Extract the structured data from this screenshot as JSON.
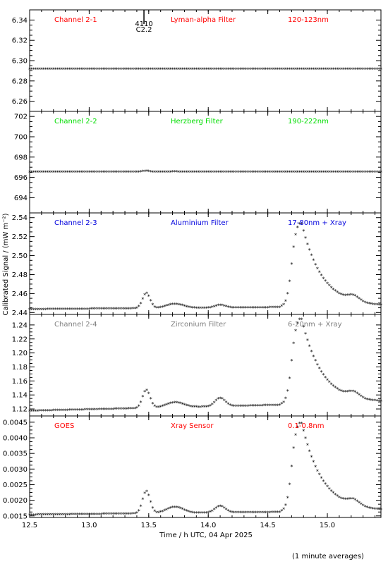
{
  "chart_data": {
    "type": "scatter",
    "xlabel": "Time / h UTC, 04 Apr 2025",
    "ylabel": "Calibrated Signal / (mW m⁻²)",
    "footnote": "(1 minute averages)",
    "xlim": [
      12.5,
      15.45
    ],
    "x_ticks": [
      "12.5",
      "13.0",
      "13.5",
      "14.0",
      "14.5",
      "15.0"
    ],
    "x_tick_values": [
      12.5,
      13.0,
      13.5,
      14.0,
      14.5,
      15.0
    ],
    "annotation": {
      "line1": "4110",
      "line2": "C2.2",
      "x": 13.46
    },
    "panels": [
      {
        "name": "Channel 2-1",
        "filter": "Lyman-alpha Filter",
        "band": "120-123nm",
        "color": "#ff0000",
        "ylim": [
          6.25,
          6.35
        ],
        "yticks": [
          "6.26",
          "6.28",
          "6.30",
          "6.32",
          "6.34"
        ],
        "ytick_values": [
          6.26,
          6.28,
          6.3,
          6.32,
          6.34
        ],
        "profile": {
          "base": 6.291,
          "bump1": 0,
          "bump2": 0,
          "flare": 0,
          "slope": 0
        }
      },
      {
        "name": "Channel 2-2",
        "filter": "Herzberg Filter",
        "band": "190-222nm",
        "color": "#00dd00",
        "ylim": [
          692.5,
          702.5
        ],
        "yticks": [
          "694",
          "696",
          "698",
          "700",
          "702"
        ],
        "ytick_values": [
          694,
          696,
          698,
          700,
          702
        ],
        "profile": {
          "base": 696.45,
          "bump1": 0.1,
          "bump2": 0,
          "flare": 0,
          "slope": 0
        }
      },
      {
        "name": "Channel 2-3",
        "filter": "Aluminium Filter",
        "band": "17-80nm + Xray",
        "color": "#0000dd",
        "ylim": [
          2.438,
          2.545
        ],
        "yticks": [
          "2.44",
          "2.46",
          "2.48",
          "2.50",
          "2.52",
          "2.54"
        ],
        "ytick_values": [
          2.44,
          2.46,
          2.48,
          2.5,
          2.52,
          2.54
        ],
        "profile": {
          "base": 2.4425,
          "bump1": 0.016,
          "bump2": 0.003,
          "flare": 0.091,
          "slope": 0.001
        }
      },
      {
        "name": "Channel 2-4",
        "filter": "Zirconium Filter",
        "band": "6-20nm + Xray",
        "color": "#808080",
        "ylim": [
          1.11,
          1.255
        ],
        "yticks": [
          "1.12",
          "1.14",
          "1.16",
          "1.18",
          "1.20",
          "1.22",
          "1.24"
        ],
        "ytick_values": [
          1.12,
          1.14,
          1.16,
          1.18,
          1.2,
          1.22,
          1.24
        ],
        "profile": {
          "base": 1.116,
          "bump1": 0.026,
          "bump2": 0.012,
          "flare": 0.126,
          "slope": 0.004
        }
      },
      {
        "name": "GOES",
        "filter": "Xray Sensor",
        "band": "0.1-0.8nm",
        "color": "#ff0000",
        "ylim": [
          0.00145,
          0.0047
        ],
        "yticks": [
          "0.0015",
          "0.0020",
          "0.0025",
          "0.0030",
          "0.0035",
          "0.0040",
          "0.0045"
        ],
        "ytick_values": [
          0.0015,
          0.002,
          0.0025,
          0.003,
          0.0035,
          0.004,
          0.0045
        ],
        "profile": {
          "base": 0.00151,
          "bump1": 0.00072,
          "bump2": 0.00022,
          "flare": 0.00294,
          "slope": 4e-05
        }
      }
    ]
  }
}
